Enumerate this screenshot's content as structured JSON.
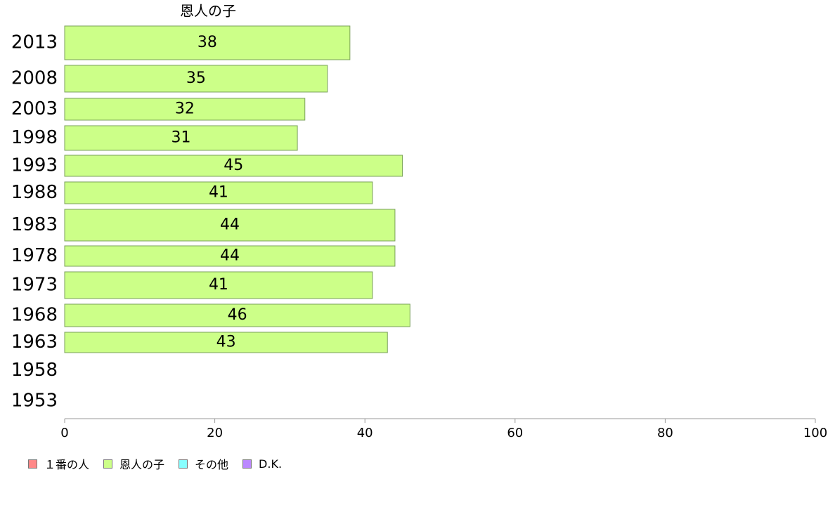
{
  "chart_data": {
    "type": "bar",
    "orientation": "horizontal",
    "categories": [
      "2013",
      "2008",
      "2003",
      "1998",
      "1993",
      "1988",
      "1983",
      "1978",
      "1973",
      "1968",
      "1963",
      "1958",
      "1953"
    ],
    "series": [
      {
        "name": "恩人の子",
        "color": "#ccff88",
        "values": [
          38,
          35,
          32,
          31,
          45,
          41,
          44,
          44,
          41,
          46,
          43,
          null,
          null
        ]
      }
    ],
    "xlim": [
      0,
      100
    ],
    "xticks": [
      0,
      20,
      40,
      60,
      80,
      100
    ],
    "grid": false,
    "legend": {
      "position": "bottom-left",
      "entries": [
        {
          "label": "１番の人",
          "color": "#ff8888"
        },
        {
          "label": "恩人の子",
          "color": "#ccff88"
        },
        {
          "label": "その他",
          "color": "#88ffff"
        },
        {
          "label": "D.K.",
          "color": "#bb88ff"
        }
      ]
    }
  }
}
